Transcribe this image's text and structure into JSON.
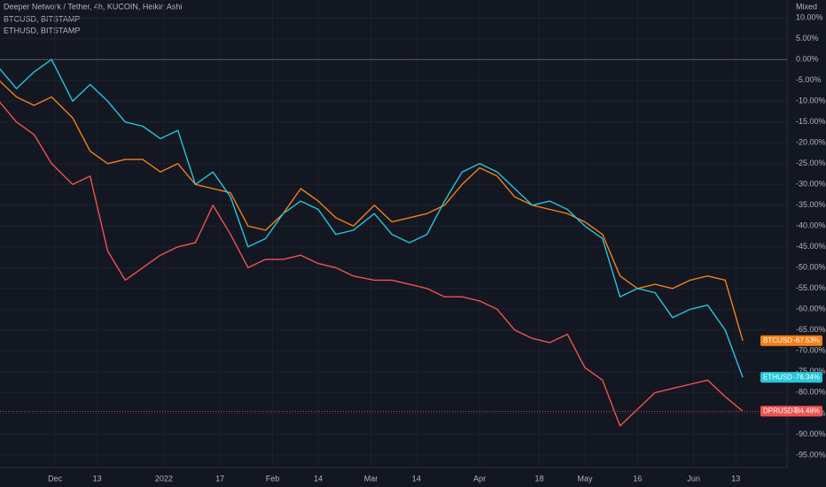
{
  "chart_data": {
    "type": "line",
    "title": "Deeper Network / Tether, 4h, KUCOIN, Heikin Ashi",
    "legend": [
      "BTCUSD, BITSTAMP",
      "ETHUSD, BITSTAMP"
    ],
    "scale_mode": "Mixed",
    "x": [
      -16,
      -11,
      -6,
      -1,
      5,
      10,
      15,
      20,
      25,
      30,
      35,
      40,
      45,
      50,
      55,
      60,
      65,
      70,
      75,
      80,
      85,
      91,
      96,
      101,
      106,
      111,
      116,
      121,
      126,
      131,
      136,
      141,
      146,
      151,
      156,
      161,
      166,
      171,
      176,
      181,
      186,
      191,
      196
    ],
    "xlim": [
      -15.7,
      208.6
    ],
    "xticks": [
      {
        "value": 0,
        "label": "Dec"
      },
      {
        "value": 12,
        "label": "13"
      },
      {
        "value": 31,
        "label": "2022"
      },
      {
        "value": 47,
        "label": "17"
      },
      {
        "value": 62,
        "label": "Feb"
      },
      {
        "value": 75,
        "label": "14"
      },
      {
        "value": 90,
        "label": "Mar"
      },
      {
        "value": 103,
        "label": "14"
      },
      {
        "value": 121,
        "label": "Apr"
      },
      {
        "value": 138,
        "label": "18"
      },
      {
        "value": 151,
        "label": "May"
      },
      {
        "value": 166,
        "label": "16"
      },
      {
        "value": 182,
        "label": "Jun"
      },
      {
        "value": 194,
        "label": "13"
      }
    ],
    "ylim": [
      -98,
      14.3
    ],
    "yticks": [
      {
        "value": 10,
        "label": "10.00%"
      },
      {
        "value": 5,
        "label": "5.00%"
      },
      {
        "value": 0,
        "label": "0.00%"
      },
      {
        "value": -5,
        "label": "-5.00%"
      },
      {
        "value": -10,
        "label": "-10.00%"
      },
      {
        "value": -15,
        "label": "-15.00%"
      },
      {
        "value": -20,
        "label": "-20.00%"
      },
      {
        "value": -25,
        "label": "-25.00%"
      },
      {
        "value": -30,
        "label": "-30.00%"
      },
      {
        "value": -35,
        "label": "-35.00%"
      },
      {
        "value": -40,
        "label": "-40.00%"
      },
      {
        "value": -45,
        "label": "-45.00%"
      },
      {
        "value": -50,
        "label": "-50.00%"
      },
      {
        "value": -55,
        "label": "-55.00%"
      },
      {
        "value": -60,
        "label": "-60.00%"
      },
      {
        "value": -65,
        "label": "-65.00%"
      },
      {
        "value": -70,
        "label": "-70.00%"
      },
      {
        "value": -75,
        "label": "-75.00%"
      },
      {
        "value": -80,
        "label": "-80.00%"
      },
      {
        "value": -85,
        "label": "-85.00%"
      },
      {
        "value": -90,
        "label": "-90.00%"
      },
      {
        "value": -95,
        "label": "-95.00%"
      }
    ],
    "grid": true,
    "series": [
      {
        "name": "BTCUSD",
        "color": "#f57f17",
        "last_label": "-67.53%",
        "values": [
          -5,
          -9,
          -11,
          -9,
          -14,
          -22,
          -25,
          -24,
          -24,
          -27,
          -25,
          -30,
          -31,
          -32,
          -40,
          -41,
          -37,
          -31,
          -34,
          -38,
          -40,
          -35,
          -39,
          -38,
          -37,
          -35,
          -30,
          -26,
          -28,
          -33,
          -35,
          -36,
          -37,
          -39,
          -42,
          -52,
          -55,
          -54,
          -55,
          -53,
          -52,
          -53,
          -67.53
        ]
      },
      {
        "name": "ETHUSD",
        "color": "#26c6da",
        "last_label": "-76.34%",
        "values": [
          -2,
          -7,
          -3,
          0,
          -10,
          -6,
          -10,
          -15,
          -16,
          -19,
          -17,
          -30,
          -27,
          -33,
          -45,
          -43,
          -37,
          -34,
          -36,
          -42,
          -41,
          -37,
          -42,
          -44,
          -42,
          -34,
          -27,
          -25,
          -27,
          -31,
          -35,
          -34,
          -36,
          -40,
          -43,
          -57,
          -55,
          -56,
          -62,
          -60,
          -59,
          -65,
          -76.34
        ]
      },
      {
        "name": "DPRUSDT",
        "color": "#ef5350",
        "last_label": "-84.48%",
        "values": [
          -10,
          -15,
          -18,
          -25,
          -30,
          -28,
          -46,
          -53,
          -50,
          -47,
          -45,
          -44,
          -35,
          -42,
          -50,
          -48,
          -48,
          -47,
          -49,
          -50,
          -52,
          -53,
          -53,
          -54,
          -55,
          -57,
          -57,
          -58,
          -60,
          -65,
          -67,
          -68,
          -66,
          -74,
          -77,
          -88,
          -84,
          -80,
          -79,
          -78,
          -77,
          -81,
          -84.48
        ]
      }
    ]
  }
}
